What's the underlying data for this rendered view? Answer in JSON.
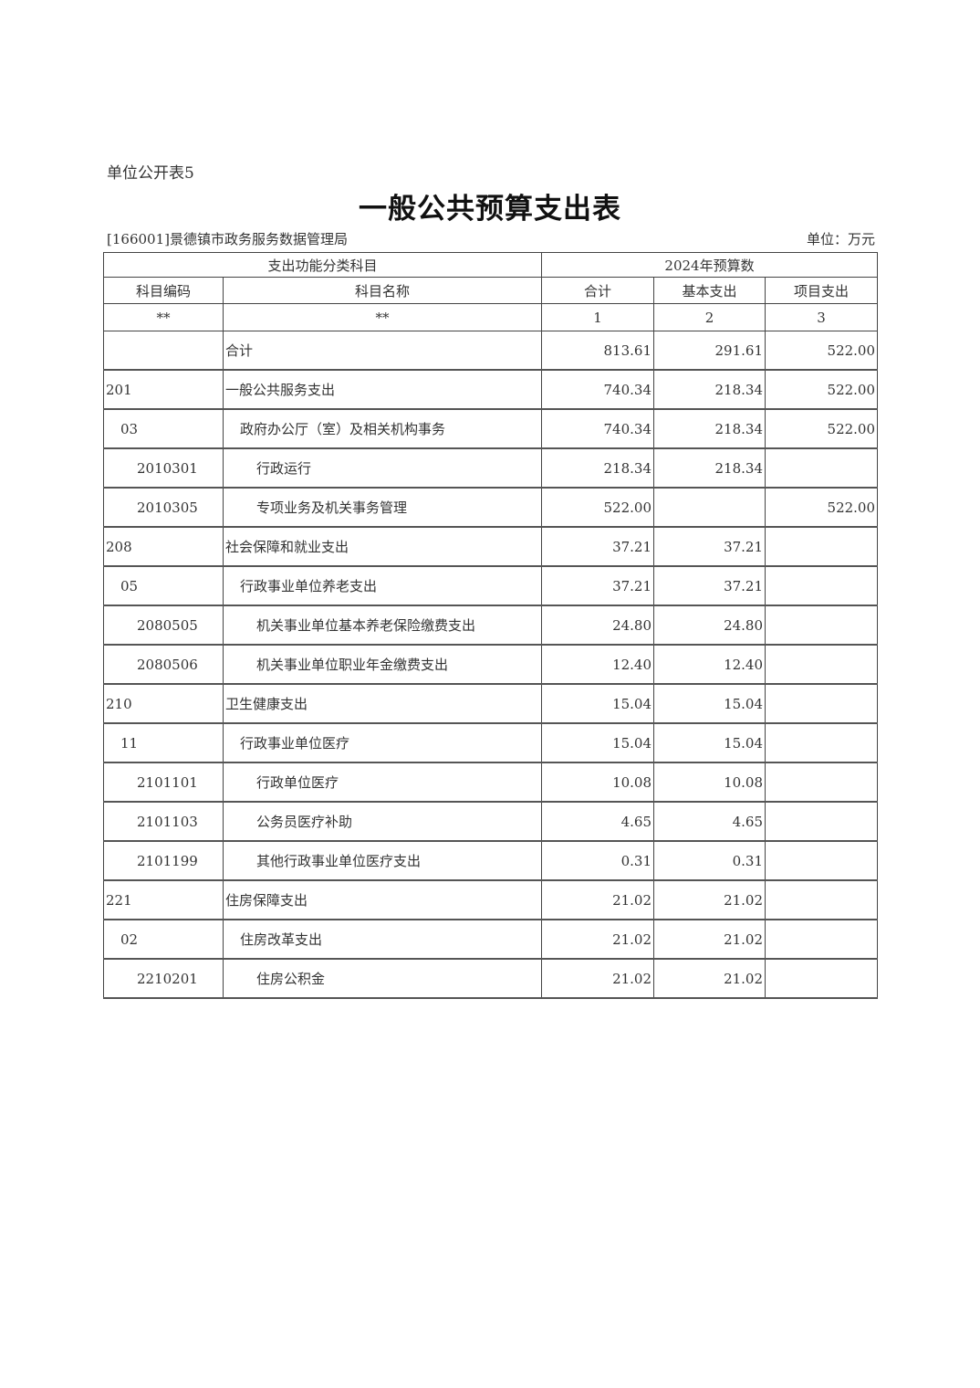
{
  "sheet_label": "单位公开表5",
  "title": "一般公共预算支出表",
  "org": "[166001]景德镇市政务服务数据管理局",
  "unit": "单位：万元",
  "header": {
    "group_left": "支出功能分类科目",
    "group_right": "2024年预算数",
    "cols": [
      "科目编码",
      "科目名称",
      "合计",
      "基本支出",
      "项目支出"
    ],
    "index": [
      "**",
      "**",
      "1",
      "2",
      "3"
    ]
  },
  "rows": [
    {
      "code": "",
      "name": "合计",
      "total": "813.61",
      "basic": "291.61",
      "project": "522.00",
      "level": 0
    },
    {
      "code": "201",
      "name": "一般公共服务支出",
      "total": "740.34",
      "basic": "218.34",
      "project": "522.00",
      "level": 0
    },
    {
      "code": "03",
      "name": "政府办公厅（室）及相关机构事务",
      "total": "740.34",
      "basic": "218.34",
      "project": "522.00",
      "level": 1
    },
    {
      "code": "2010301",
      "name": "行政运行",
      "total": "218.34",
      "basic": "218.34",
      "project": "",
      "level": 2
    },
    {
      "code": "2010305",
      "name": "专项业务及机关事务管理",
      "total": "522.00",
      "basic": "",
      "project": "522.00",
      "level": 2
    },
    {
      "code": "208",
      "name": "社会保障和就业支出",
      "total": "37.21",
      "basic": "37.21",
      "project": "",
      "level": 0
    },
    {
      "code": "05",
      "name": "行政事业单位养老支出",
      "total": "37.21",
      "basic": "37.21",
      "project": "",
      "level": 1
    },
    {
      "code": "2080505",
      "name": "机关事业单位基本养老保险缴费支出",
      "total": "24.80",
      "basic": "24.80",
      "project": "",
      "level": 2
    },
    {
      "code": "2080506",
      "name": "机关事业单位职业年金缴费支出",
      "total": "12.40",
      "basic": "12.40",
      "project": "",
      "level": 2
    },
    {
      "code": "210",
      "name": "卫生健康支出",
      "total": "15.04",
      "basic": "15.04",
      "project": "",
      "level": 0
    },
    {
      "code": "11",
      "name": "行政事业单位医疗",
      "total": "15.04",
      "basic": "15.04",
      "project": "",
      "level": 1
    },
    {
      "code": "2101101",
      "name": "行政单位医疗",
      "total": "10.08",
      "basic": "10.08",
      "project": "",
      "level": 2
    },
    {
      "code": "2101103",
      "name": "公务员医疗补助",
      "total": "4.65",
      "basic": "4.65",
      "project": "",
      "level": 2
    },
    {
      "code": "2101199",
      "name": "其他行政事业单位医疗支出",
      "total": "0.31",
      "basic": "0.31",
      "project": "",
      "level": 2
    },
    {
      "code": "221",
      "name": "住房保障支出",
      "total": "21.02",
      "basic": "21.02",
      "project": "",
      "level": 0
    },
    {
      "code": "02",
      "name": "住房改革支出",
      "total": "21.02",
      "basic": "21.02",
      "project": "",
      "level": 1
    },
    {
      "code": "2210201",
      "name": "住房公积金",
      "total": "21.02",
      "basic": "21.02",
      "project": "",
      "level": 2
    }
  ]
}
